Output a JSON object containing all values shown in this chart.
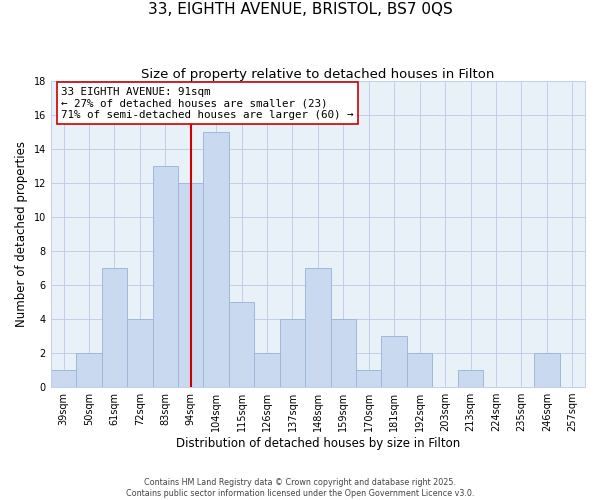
{
  "title": "33, EIGHTH AVENUE, BRISTOL, BS7 0QS",
  "subtitle": "Size of property relative to detached houses in Filton",
  "xlabel": "Distribution of detached houses by size in Filton",
  "ylabel": "Number of detached properties",
  "categories": [
    "39sqm",
    "50sqm",
    "61sqm",
    "72sqm",
    "83sqm",
    "94sqm",
    "104sqm",
    "115sqm",
    "126sqm",
    "137sqm",
    "148sqm",
    "159sqm",
    "170sqm",
    "181sqm",
    "192sqm",
    "203sqm",
    "213sqm",
    "224sqm",
    "235sqm",
    "246sqm",
    "257sqm"
  ],
  "values": [
    1,
    2,
    7,
    4,
    13,
    12,
    15,
    5,
    2,
    4,
    7,
    4,
    1,
    3,
    2,
    0,
    1,
    0,
    0,
    2,
    0
  ],
  "bar_color": "#c9d9f0",
  "bar_edge_color": "#a0b8d8",
  "vline_index": 5,
  "property_line_label": "33 EIGHTH AVENUE: 91sqm",
  "annotation_line1": "← 27% of detached houses are smaller (23)",
  "annotation_line2": "71% of semi-detached houses are larger (60) →",
  "annotation_box_color": "#ffffff",
  "annotation_box_edge": "#cc0000",
  "vline_color": "#cc0000",
  "ylim": [
    0,
    18
  ],
  "yticks": [
    0,
    2,
    4,
    6,
    8,
    10,
    12,
    14,
    16,
    18
  ],
  "footer1": "Contains HM Land Registry data © Crown copyright and database right 2025.",
  "footer2": "Contains public sector information licensed under the Open Government Licence v3.0.",
  "background_color": "#ffffff",
  "plot_bg_color": "#e8f0f8",
  "grid_color": "#c0d0e8",
  "title_fontsize": 11,
  "subtitle_fontsize": 9.5,
  "axis_label_fontsize": 8.5,
  "tick_fontsize": 7,
  "bar_width": 1.0
}
